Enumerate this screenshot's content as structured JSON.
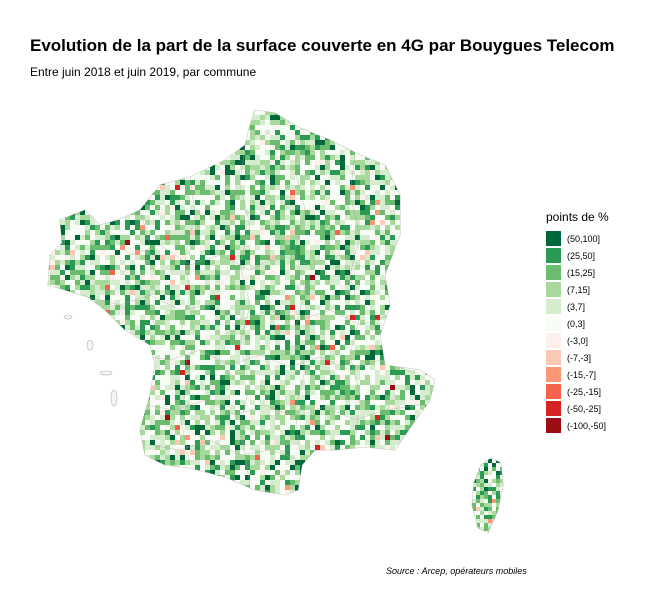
{
  "title": "Evolution de la part de la surface couverte en 4G par Bouygues Telecom",
  "subtitle": "Entre juin 2018 et juin 2019, par commune",
  "legend": {
    "title": "points de %",
    "items": [
      {
        "label": "(50,100]",
        "color": "#00683a"
      },
      {
        "label": "(25,50]",
        "color": "#2b9a54"
      },
      {
        "label": "(15,25]",
        "color": "#6abd6e"
      },
      {
        "label": "(7,15]",
        "color": "#a6d99b"
      },
      {
        "label": "(3,7]",
        "color": "#d5edce"
      },
      {
        "label": "(0,3]",
        "color": "#f7fcf5"
      },
      {
        "label": "(-3,0]",
        "color": "#fdf0ea"
      },
      {
        "label": "(-7,-3]",
        "color": "#fcc9b4"
      },
      {
        "label": "(-15,-7]",
        "color": "#fb9677"
      },
      {
        "label": "(-25,-15]",
        "color": "#f3644a"
      },
      {
        "label": "(-50,-25]",
        "color": "#d42322"
      },
      {
        "label": "(-100,-50]",
        "color": "#9d0d14"
      }
    ]
  },
  "source": "Source : Arcep, opérateurs mobiles"
}
